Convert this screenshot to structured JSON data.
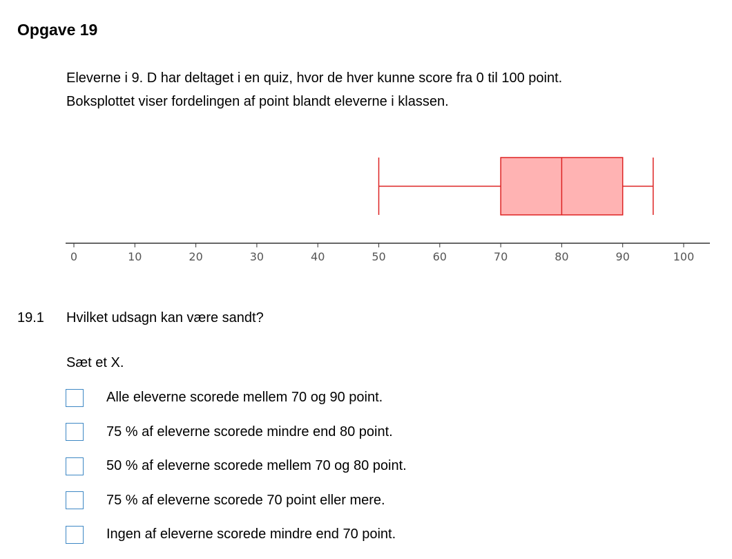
{
  "task": {
    "title": "Opgave 19",
    "intro_line_1": "Eleverne i 9. D har deltaget i en quiz, hvor de hver kunne score fra 0 til 100 point.",
    "intro_line_2": "Boksplottet viser fordelingen af point blandt eleverne i klassen."
  },
  "chart_data": {
    "type": "boxplot",
    "title": "",
    "xlabel": "",
    "ylabel": "",
    "xlim": [
      0,
      100
    ],
    "ticks": [
      0,
      10,
      20,
      30,
      40,
      50,
      60,
      70,
      80,
      90,
      100
    ],
    "min": 50,
    "q1": 70,
    "median": 80,
    "q3": 90,
    "max": 95,
    "colors": {
      "box_fill": "#ffb3b3",
      "box_stroke": "#dd2222",
      "axis": "#333333",
      "tick_label": "#555555"
    }
  },
  "question": {
    "number": "19.1",
    "text": "Hvilket udsagn kan være sandt?",
    "instruction": "Sæt et X.",
    "options": [
      {
        "label": "Alle eleverne scorede mellem 70 og 90 point.",
        "checked": false
      },
      {
        "label": "75 % af eleverne scorede mindre end 80 point.",
        "checked": false
      },
      {
        "label": "50 % af eleverne scorede mellem 70 og 80 point.",
        "checked": false
      },
      {
        "label": "75 % af eleverne scorede 70 point eller mere.",
        "checked": false
      },
      {
        "label": "Ingen af eleverne scorede mindre end 70 point.",
        "checked": false
      }
    ]
  },
  "colors": {
    "checkbox_border": "#3d87c4"
  }
}
